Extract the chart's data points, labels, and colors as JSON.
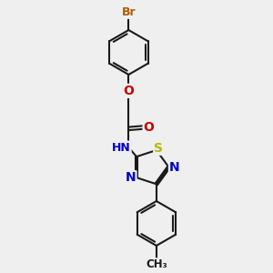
{
  "bg_color": "#efefef",
  "bond_color": "#1a1a1a",
  "bond_width": 1.5,
  "dbo": 0.055,
  "colors": {
    "Br": "#b35a00",
    "O": "#cc0000",
    "N": "#0000cc",
    "S": "#b8b800",
    "C": "#1a1a1a"
  },
  "fs": 9.5
}
